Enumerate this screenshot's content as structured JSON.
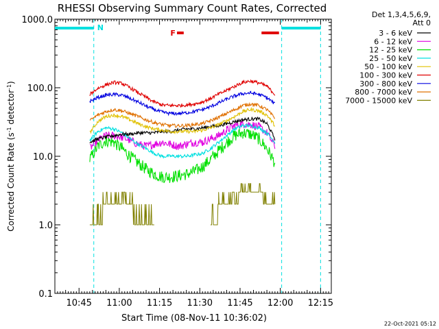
{
  "chart_data": {
    "type": "line",
    "title": "RHESSI Observing Summary Count Rates, Corrected",
    "xlabel": "Start Time (08-Nov-11 10:36:02)",
    "ylabel": "Corrected Count Rate (s⁻¹ detector⁻¹)",
    "ylabel_parts": [
      "Corrected Count Rate (s",
      "-1",
      " detector",
      "-1",
      ")"
    ],
    "y_scale": "log",
    "ylim": [
      0.1,
      1000.0
    ],
    "xlim_minutes_after_1036": [
      0,
      103
    ],
    "yticks": [
      {
        "label": "1000.0",
        "value": 1000.0
      },
      {
        "label": "100.0",
        "value": 100.0
      },
      {
        "label": "10.0",
        "value": 10.0
      },
      {
        "label": "1.0",
        "value": 1.0
      },
      {
        "label": "0.1",
        "value": 0.1
      }
    ],
    "xticks": [
      {
        "label": "10:45",
        "minute": 9
      },
      {
        "label": "11:00",
        "minute": 24
      },
      {
        "label": "11:15",
        "minute": 39
      },
      {
        "label": "11:30",
        "minute": 54
      },
      {
        "label": "11:45",
        "minute": 69
      },
      {
        "label": "12:00",
        "minute": 84
      },
      {
        "label": "12:15",
        "minute": 99
      }
    ],
    "legend_placement": "right",
    "legend_header": [
      "Det 1,3,4,5,6,9,",
      "Att 0"
    ],
    "x_times": [
      "10:49",
      "10:52",
      "10:55",
      "10:58",
      "11:01",
      "11:04",
      "11:07",
      "11:10",
      "11:13",
      "11:16",
      "11:19",
      "11:22",
      "11:25",
      "11:28",
      "11:31",
      "11:34",
      "11:37",
      "11:40",
      "11:43",
      "11:46",
      "11:49",
      "11:52",
      "11:55",
      "11:58"
    ],
    "series": [
      {
        "name": "3 - 6 keV",
        "color": "#000000",
        "values": [
          16,
          18,
          19,
          20,
          21,
          21,
          22,
          22,
          22,
          23,
          23,
          24,
          25,
          25,
          26,
          27,
          28,
          30,
          32,
          34,
          35,
          35,
          30,
          18
        ]
      },
      {
        "name": "6 - 12 keV",
        "color": "#e000e0",
        "values": [
          13,
          17,
          20,
          20,
          19,
          17,
          15,
          14,
          15,
          16,
          15,
          14,
          15,
          16,
          16,
          18,
          20,
          24,
          28,
          30,
          29,
          27,
          22,
          14
        ]
      },
      {
        "name": "12 - 25 keV",
        "color": "#00e000",
        "values": [
          9,
          14,
          17,
          16,
          13,
          10,
          8,
          6.5,
          5.5,
          5,
          5,
          5.2,
          5.5,
          6,
          7,
          9,
          12,
          16,
          20,
          22,
          21,
          18,
          13,
          8
        ]
      },
      {
        "name": "25 - 50 keV",
        "color": "#00e0e0",
        "values": [
          17,
          23,
          26,
          25,
          22,
          18,
          15,
          13,
          11,
          10,
          10,
          10,
          10,
          10.5,
          11,
          13,
          16,
          20,
          25,
          28,
          28,
          26,
          22,
          16
        ]
      },
      {
        "name": "50 - 100 keV",
        "color": "#e0c000",
        "values": [
          22,
          32,
          38,
          40,
          38,
          34,
          30,
          27,
          25,
          24,
          23,
          23,
          23,
          23,
          24,
          26,
          29,
          33,
          38,
          45,
          48,
          46,
          40,
          28
        ]
      },
      {
        "name": "100 - 300 keV",
        "color": "#e00000",
        "values": [
          80,
          98,
          110,
          120,
          115,
          100,
          85,
          72,
          62,
          56,
          55,
          55,
          56,
          58,
          62,
          70,
          80,
          92,
          105,
          120,
          125,
          118,
          105,
          80
        ]
      },
      {
        "name": "300 - 800 keV",
        "color": "#0000e0",
        "values": [
          63,
          72,
          78,
          80,
          78,
          70,
          62,
          54,
          48,
          44,
          42,
          42,
          43,
          45,
          48,
          53,
          60,
          68,
          76,
          82,
          84,
          80,
          72,
          58
        ]
      },
      {
        "name": "800 - 7000 keV",
        "color": "#e07000",
        "values": [
          33,
          40,
          45,
          48,
          46,
          42,
          38,
          34,
          31,
          29,
          28,
          28,
          28,
          29,
          30,
          33,
          37,
          42,
          48,
          55,
          58,
          55,
          48,
          36
        ]
      },
      {
        "name": "7000 - 15000 keV",
        "color": "#808000",
        "values": [
          1,
          1,
          2,
          2,
          2,
          2,
          1,
          1,
          1,
          null,
          null,
          null,
          null,
          null,
          null,
          1,
          1.5,
          2,
          2,
          3,
          3,
          3,
          2,
          1.5
        ]
      }
    ],
    "annotations": [
      {
        "text": "N",
        "color": "#00e0e0",
        "minute": 14.5
      },
      {
        "text": "F",
        "color": "#e00000",
        "minute": 44
      }
    ],
    "night_bars_minutes": [
      [
        0,
        14.5
      ],
      [
        84.5,
        99
      ]
    ],
    "flare_bars_minutes": [
      [
        45.5,
        48
      ],
      [
        77,
        83.5
      ]
    ],
    "saa_bars_minutes": [],
    "colors": {
      "night": "#00e0e0",
      "flare": "#e00000"
    }
  },
  "footer": {
    "timestamp": "22-Oct-2021 05:12"
  }
}
